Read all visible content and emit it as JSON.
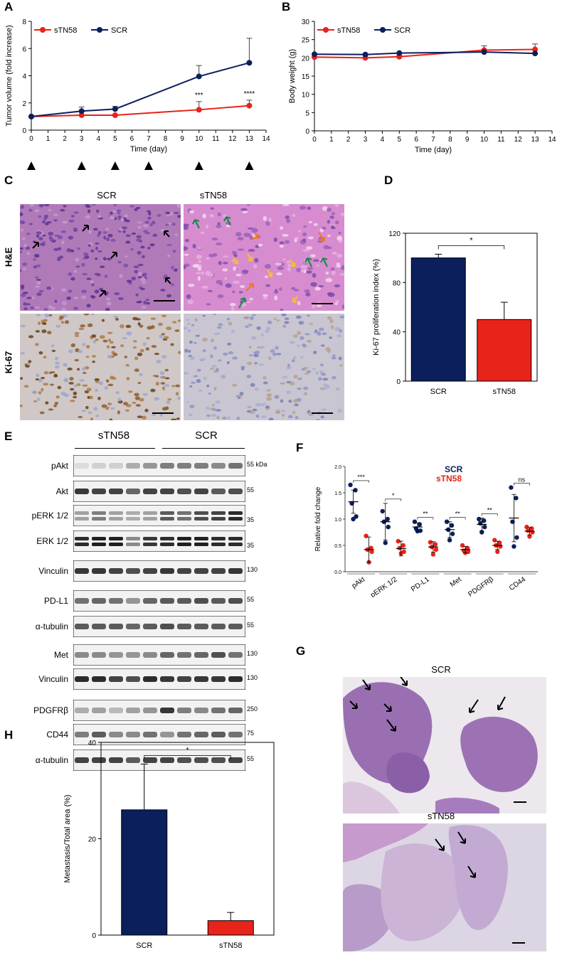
{
  "panels": {
    "A": "A",
    "B": "B",
    "C": "C",
    "D": "D",
    "E": "E",
    "F": "F",
    "G": "G",
    "H": "H"
  },
  "colors": {
    "sTN58": "#e8231a",
    "SCR": "#0b1f5c",
    "axis": "#000000"
  },
  "panelA": {
    "chart_data": {
      "type": "line",
      "xlabel": "Time (day)",
      "ylabel": "Tumor volume (fold increase)",
      "xlim": [
        0,
        14
      ],
      "ylim": [
        0,
        8
      ],
      "xticks": [
        0,
        1,
        2,
        3,
        4,
        5,
        6,
        7,
        8,
        9,
        10,
        11,
        12,
        13,
        14
      ],
      "yticks": [
        0,
        2,
        4,
        6,
        8
      ],
      "series": [
        {
          "name": "sTN58",
          "x": [
            0,
            3,
            5,
            10,
            13
          ],
          "y": [
            1.0,
            1.1,
            1.1,
            1.5,
            1.8
          ],
          "err": [
            0,
            0,
            0,
            0.6,
            0.4
          ]
        },
        {
          "name": "SCR",
          "x": [
            0,
            3,
            5,
            10,
            13
          ],
          "y": [
            1.0,
            1.4,
            1.55,
            3.95,
            4.95
          ],
          "err": [
            0,
            0.3,
            0.2,
            0.8,
            1.8
          ]
        }
      ],
      "annotations": [
        {
          "x": 10,
          "text": "***"
        },
        {
          "x": 13,
          "text": "****"
        }
      ],
      "treatment_days": [
        0,
        3,
        5,
        7,
        10,
        13
      ],
      "legend": "top-left"
    }
  },
  "panelB": {
    "chart_data": {
      "type": "line",
      "xlabel": "Time (day)",
      "ylabel": "Body weight (g)",
      "xlim": [
        0,
        14
      ],
      "ylim": [
        0,
        30
      ],
      "xticks": [
        0,
        1,
        2,
        3,
        4,
        5,
        6,
        7,
        8,
        9,
        10,
        11,
        12,
        13,
        14
      ],
      "yticks": [
        0,
        5,
        10,
        15,
        20,
        25,
        30
      ],
      "series": [
        {
          "name": "sTN58",
          "x": [
            0,
            3,
            5,
            10,
            13
          ],
          "y": [
            20.2,
            20.0,
            20.3,
            22.1,
            22.3
          ],
          "err": [
            0,
            0,
            0.4,
            1.2,
            1.5
          ]
        },
        {
          "name": "SCR",
          "x": [
            0,
            3,
            5,
            10,
            13
          ],
          "y": [
            21.0,
            20.9,
            21.3,
            21.6,
            21.2
          ],
          "err": [
            0,
            0,
            0,
            0,
            0
          ]
        }
      ],
      "legend": "top-left"
    }
  },
  "panelC": {
    "col_scr": "SCR",
    "col_stn": "sTN58",
    "row_he": "H&E",
    "row_ki": "Ki-67"
  },
  "panelD": {
    "chart_data": {
      "type": "bar",
      "categories": [
        "SCR",
        "sTN58"
      ],
      "values": [
        100,
        50
      ],
      "err": [
        3,
        14
      ],
      "ylabel": "Ki-67 proliferation index (%)",
      "ylim": [
        0,
        120
      ],
      "yticks": [
        0,
        40,
        80,
        120
      ],
      "significance": "*"
    }
  },
  "panelE": {
    "group_left": "sTN58",
    "group_right": "SCR",
    "rows": [
      {
        "label": "pAkt",
        "mw": "55 kDa"
      },
      {
        "label": "Akt",
        "mw": "55"
      },
      {
        "label": "pERK 1/2",
        "mw": "35"
      },
      {
        "label": "ERK 1/2",
        "mw": "35"
      },
      {
        "label": "Vinculin",
        "mw": "130"
      },
      {
        "label": "PD-L1",
        "mw": "55"
      },
      {
        "label": "α-tubulin",
        "mw": "55"
      },
      {
        "label": "Met",
        "mw": "130"
      },
      {
        "label": "Vinculin",
        "mw": "130"
      },
      {
        "label": "PDGFRβ",
        "mw": "250"
      },
      {
        "label": "CD44",
        "mw": "75"
      },
      {
        "label": "α-tubulin",
        "mw": "55"
      }
    ]
  },
  "panelF": {
    "chart_data": {
      "type": "scatter",
      "ylabel": "Relative fold change",
      "ylim": [
        0,
        2.0
      ],
      "yticks": [
        "0.0",
        "0.5",
        "1.0",
        "1.5",
        "2.0"
      ],
      "categories": [
        "pAkt",
        "pERK 1/2",
        "PD-L1",
        "Met",
        "PDGFRβ",
        "CD44"
      ],
      "significance": [
        "***",
        "*",
        "**",
        "**",
        "**",
        "ns"
      ],
      "legend": [
        "SCR",
        "sTN58"
      ],
      "series": [
        {
          "name": "SCR",
          "mean": [
            1.33,
            0.95,
            0.85,
            0.8,
            0.9,
            1.02
          ],
          "sd": [
            0.22,
            0.35,
            0.08,
            0.15,
            0.12,
            0.45
          ],
          "points": [
            [
              1.65,
              1.55,
              1.3,
              1.05,
              1.0
            ],
            [
              1.15,
              1.0,
              0.95,
              0.85,
              0.55
            ],
            [
              0.95,
              0.9,
              0.82,
              0.78,
              0.77
            ],
            [
              0.95,
              0.88,
              0.8,
              0.72,
              0.6
            ],
            [
              1.0,
              0.97,
              0.92,
              0.85,
              0.75
            ],
            [
              1.6,
              1.4,
              0.95,
              0.65,
              0.48
            ]
          ]
        },
        {
          "name": "sTN58",
          "mean": [
            0.42,
            0.44,
            0.47,
            0.42,
            0.5,
            0.77
          ],
          "sd": [
            0.24,
            0.14,
            0.1,
            0.06,
            0.08,
            0.07
          ],
          "points": [
            [
              0.68,
              0.45,
              0.42,
              0.38,
              0.18
            ],
            [
              0.58,
              0.5,
              0.45,
              0.38,
              0.35
            ],
            [
              0.56,
              0.52,
              0.47,
              0.42,
              0.33
            ],
            [
              0.5,
              0.45,
              0.4,
              0.38,
              0.36
            ],
            [
              0.6,
              0.55,
              0.5,
              0.48,
              0.38
            ],
            [
              0.85,
              0.82,
              0.78,
              0.75,
              0.67
            ]
          ]
        }
      ]
    }
  },
  "panelG": {
    "top": "SCR",
    "bottom": "sTN58"
  },
  "panelH": {
    "chart_data": {
      "type": "bar",
      "categories": [
        "SCR",
        "sTN58"
      ],
      "values": [
        26,
        3
      ],
      "err": [
        9.5,
        1.7
      ],
      "ylabel": "Metastasis/Total area (%)",
      "ylim": [
        0,
        40
      ],
      "yticks": [
        0,
        20,
        40
      ],
      "significance": "*"
    }
  }
}
